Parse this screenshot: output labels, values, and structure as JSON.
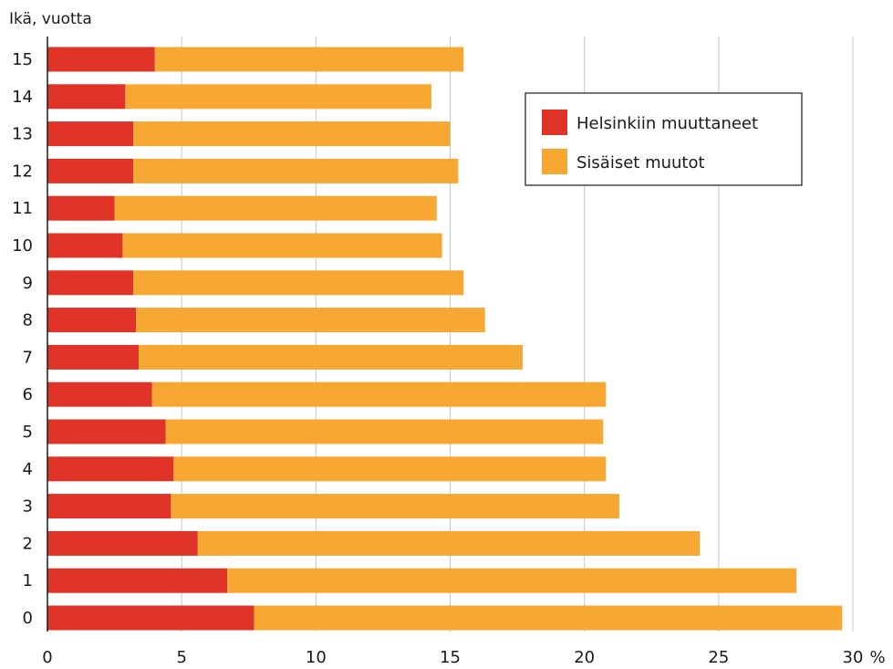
{
  "chart_data": {
    "type": "bar",
    "orientation": "horizontal",
    "stacked": true,
    "title": "",
    "ylabel": "Ikä, vuotta",
    "xunit": "%",
    "categories": [
      "0",
      "1",
      "2",
      "3",
      "4",
      "5",
      "6",
      "7",
      "8",
      "9",
      "10",
      "11",
      "12",
      "13",
      "14",
      "15"
    ],
    "xlim": [
      0,
      30
    ],
    "xticks": [
      0,
      5,
      10,
      15,
      20,
      25,
      30
    ],
    "grid": true,
    "legend_position": "top-right",
    "series": [
      {
        "name": "Helsinkiin muuttaneet",
        "color": "#e03327",
        "values": [
          7.7,
          6.7,
          5.6,
          4.6,
          4.7,
          4.4,
          3.9,
          3.4,
          3.3,
          3.2,
          2.8,
          2.5,
          3.2,
          3.2,
          2.9,
          4.0
        ]
      },
      {
        "name": "Sisäiset muutot",
        "color": "#f6a832",
        "values": [
          21.9,
          21.2,
          18.7,
          16.7,
          16.1,
          16.3,
          16.9,
          14.3,
          13.0,
          12.3,
          11.9,
          12.0,
          12.1,
          11.8,
          11.4,
          11.5
        ]
      }
    ]
  }
}
